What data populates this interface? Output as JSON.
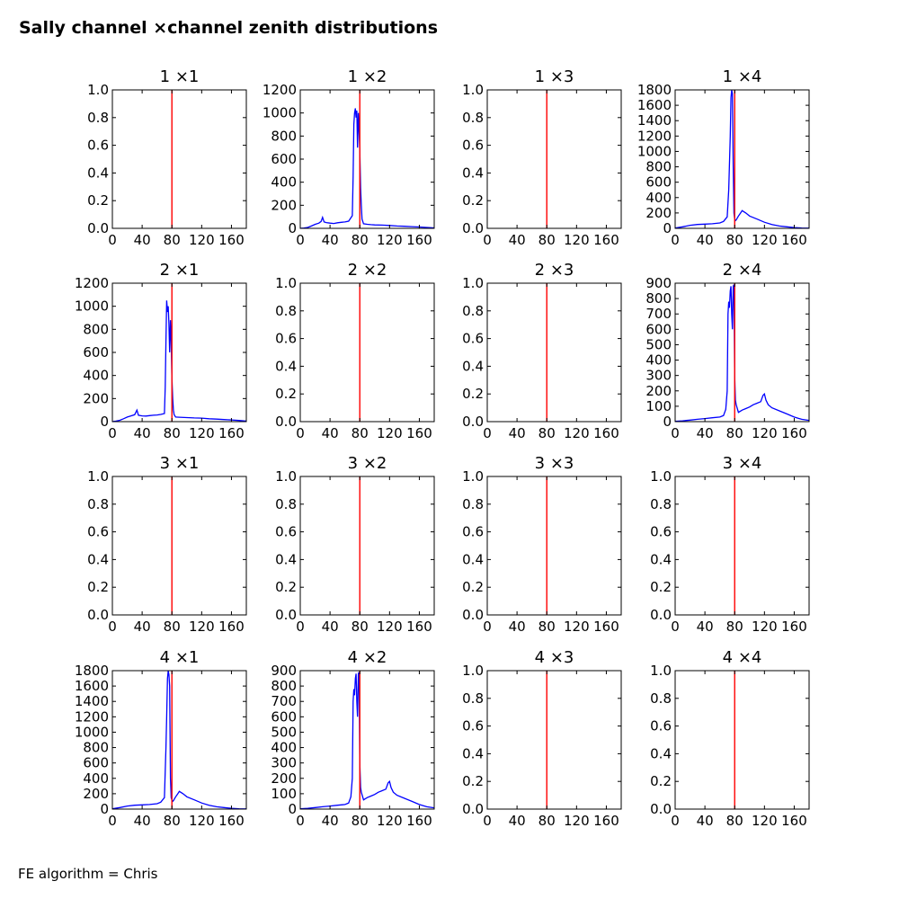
{
  "figure": {
    "title": "Sally channel ×channel zenith distributions",
    "footer": "FE algorithm = Chris",
    "colors": {
      "histogram": "#0000ff",
      "marker": "#ff0000",
      "axes": "#000000"
    }
  },
  "chart_data": [
    {
      "type": "line",
      "title": "1 ×1",
      "xlim": [
        0,
        180
      ],
      "ylim": [
        0,
        1.0
      ],
      "xticks": [
        "0",
        "40",
        "80",
        "120",
        "160"
      ],
      "yticks": [
        "0.0",
        "0.2",
        "0.4",
        "0.6",
        "0.8",
        "1.0"
      ],
      "marker_x": 80,
      "x": [],
      "y": []
    },
    {
      "type": "line",
      "title": "1 ×2",
      "xlim": [
        0,
        180
      ],
      "ylim": [
        0,
        1200
      ],
      "xticks": [
        "0",
        "40",
        "80",
        "120",
        "160"
      ],
      "yticks": [
        "0",
        "200",
        "400",
        "600",
        "800",
        "1000",
        "1200"
      ],
      "marker_x": 80,
      "x": [
        0,
        5,
        10,
        15,
        20,
        25,
        28,
        30,
        32,
        35,
        40,
        45,
        50,
        55,
        60,
        65,
        70,
        71,
        72,
        73,
        74,
        75,
        76,
        77,
        78,
        79,
        80,
        81,
        82,
        83,
        85,
        90,
        95,
        100,
        110,
        120,
        130,
        140,
        150,
        160,
        170,
        180
      ],
      "y": [
        0,
        3,
        8,
        20,
        35,
        45,
        60,
        95,
        55,
        50,
        45,
        42,
        48,
        52,
        55,
        62,
        110,
        450,
        900,
        1000,
        1040,
        960,
        1020,
        700,
        1000,
        850,
        680,
        350,
        200,
        80,
        40,
        35,
        32,
        30,
        28,
        25,
        20,
        18,
        15,
        12,
        8,
        4
      ]
    },
    {
      "type": "line",
      "title": "1 ×3",
      "xlim": [
        0,
        180
      ],
      "ylim": [
        0,
        1.0
      ],
      "xticks": [
        "0",
        "40",
        "80",
        "120",
        "160"
      ],
      "yticks": [
        "0.0",
        "0.2",
        "0.4",
        "0.6",
        "0.8",
        "1.0"
      ],
      "marker_x": 80,
      "x": [],
      "y": []
    },
    {
      "type": "line",
      "title": "1 ×4",
      "xlim": [
        0,
        180
      ],
      "ylim": [
        0,
        1800
      ],
      "xticks": [
        "0",
        "40",
        "80",
        "120",
        "160"
      ],
      "yticks": [
        "0",
        "200",
        "400",
        "600",
        "800",
        "1000",
        "1200",
        "1400",
        "1600",
        "1800"
      ],
      "marker_x": 80,
      "x": [
        0,
        10,
        20,
        30,
        40,
        50,
        60,
        65,
        70,
        72,
        74,
        75,
        76,
        77,
        78,
        79,
        80,
        81,
        82,
        85,
        88,
        90,
        95,
        100,
        110,
        120,
        130,
        140,
        150,
        160,
        170,
        180
      ],
      "y": [
        5,
        20,
        40,
        50,
        55,
        60,
        70,
        90,
        150,
        500,
        1200,
        1700,
        1800,
        1750,
        800,
        200,
        120,
        100,
        110,
        160,
        200,
        230,
        200,
        160,
        120,
        80,
        50,
        30,
        20,
        10,
        5,
        2
      ]
    },
    {
      "type": "line",
      "title": "2 ×1",
      "xlim": [
        0,
        180
      ],
      "ylim": [
        0,
        1200
      ],
      "xticks": [
        "0",
        "40",
        "80",
        "120",
        "160"
      ],
      "yticks": [
        "0",
        "200",
        "400",
        "600",
        "800",
        "1000",
        "1200"
      ],
      "marker_x": 80,
      "x": [
        0,
        5,
        10,
        15,
        20,
        25,
        30,
        33,
        35,
        40,
        45,
        50,
        55,
        60,
        65,
        70,
        71,
        72,
        73,
        74,
        75,
        76,
        77,
        78,
        79,
        80,
        81,
        82,
        83,
        85,
        90,
        100,
        110,
        120,
        130,
        140,
        150,
        160,
        170,
        180
      ],
      "y": [
        0,
        5,
        12,
        25,
        40,
        50,
        60,
        100,
        55,
        50,
        48,
        52,
        55,
        58,
        62,
        70,
        300,
        700,
        1050,
        950,
        1000,
        850,
        600,
        880,
        700,
        380,
        200,
        100,
        60,
        40,
        38,
        35,
        32,
        30,
        25,
        22,
        18,
        15,
        10,
        5
      ]
    },
    {
      "type": "line",
      "title": "2 ×2",
      "xlim": [
        0,
        180
      ],
      "ylim": [
        0,
        1.0
      ],
      "xticks": [
        "0",
        "40",
        "80",
        "120",
        "160"
      ],
      "yticks": [
        "0.0",
        "0.2",
        "0.4",
        "0.6",
        "0.8",
        "1.0"
      ],
      "marker_x": 80,
      "x": [],
      "y": []
    },
    {
      "type": "line",
      "title": "2 ×3",
      "xlim": [
        0,
        180
      ],
      "ylim": [
        0,
        1.0
      ],
      "xticks": [
        "0",
        "40",
        "80",
        "120",
        "160"
      ],
      "yticks": [
        "0.0",
        "0.2",
        "0.4",
        "0.6",
        "0.8",
        "1.0"
      ],
      "marker_x": 80,
      "x": [],
      "y": []
    },
    {
      "type": "line",
      "title": "2 ×4",
      "xlim": [
        0,
        180
      ],
      "ylim": [
        0,
        900
      ],
      "xticks": [
        "0",
        "40",
        "80",
        "120",
        "160"
      ],
      "yticks": [
        "0",
        "100",
        "200",
        "300",
        "400",
        "500",
        "600",
        "700",
        "800",
        "900"
      ],
      "marker_x": 80,
      "x": [
        0,
        10,
        20,
        30,
        40,
        50,
        60,
        65,
        68,
        70,
        71,
        72,
        73,
        74,
        75,
        76,
        77,
        78,
        79,
        80,
        81,
        82,
        85,
        90,
        95,
        100,
        105,
        110,
        115,
        118,
        120,
        122,
        125,
        130,
        140,
        150,
        160,
        170,
        180
      ],
      "y": [
        2,
        5,
        10,
        15,
        20,
        25,
        30,
        40,
        80,
        200,
        700,
        780,
        740,
        850,
        880,
        700,
        600,
        880,
        890,
        300,
        140,
        110,
        60,
        75,
        85,
        95,
        110,
        120,
        130,
        170,
        180,
        140,
        110,
        90,
        70,
        50,
        30,
        15,
        8
      ]
    },
    {
      "type": "line",
      "title": "3 ×1",
      "xlim": [
        0,
        180
      ],
      "ylim": [
        0,
        1.0
      ],
      "xticks": [
        "0",
        "40",
        "80",
        "120",
        "160"
      ],
      "yticks": [
        "0.0",
        "0.2",
        "0.4",
        "0.6",
        "0.8",
        "1.0"
      ],
      "marker_x": 80,
      "x": [],
      "y": []
    },
    {
      "type": "line",
      "title": "3 ×2",
      "xlim": [
        0,
        180
      ],
      "ylim": [
        0,
        1.0
      ],
      "xticks": [
        "0",
        "40",
        "80",
        "120",
        "160"
      ],
      "yticks": [
        "0.0",
        "0.2",
        "0.4",
        "0.6",
        "0.8",
        "1.0"
      ],
      "marker_x": 80,
      "x": [],
      "y": []
    },
    {
      "type": "line",
      "title": "3 ×3",
      "xlim": [
        0,
        180
      ],
      "ylim": [
        0,
        1.0
      ],
      "xticks": [
        "0",
        "40",
        "80",
        "120",
        "160"
      ],
      "yticks": [
        "0.0",
        "0.2",
        "0.4",
        "0.6",
        "0.8",
        "1.0"
      ],
      "marker_x": 80,
      "x": [],
      "y": []
    },
    {
      "type": "line",
      "title": "3 ×4",
      "xlim": [
        0,
        180
      ],
      "ylim": [
        0,
        1.0
      ],
      "xticks": [
        "0",
        "40",
        "80",
        "120",
        "160"
      ],
      "yticks": [
        "0.0",
        "0.2",
        "0.4",
        "0.6",
        "0.8",
        "1.0"
      ],
      "marker_x": 80,
      "x": [],
      "y": []
    },
    {
      "type": "line",
      "title": "4 ×1",
      "xlim": [
        0,
        180
      ],
      "ylim": [
        0,
        1800
      ],
      "xticks": [
        "0",
        "40",
        "80",
        "120",
        "160"
      ],
      "yticks": [
        "0",
        "200",
        "400",
        "600",
        "800",
        "1000",
        "1200",
        "1400",
        "1600",
        "1800"
      ],
      "marker_x": 80,
      "x": [
        0,
        10,
        20,
        30,
        40,
        50,
        60,
        65,
        70,
        72,
        73,
        74,
        75,
        76,
        77,
        78,
        79,
        80,
        81,
        82,
        85,
        88,
        90,
        95,
        100,
        110,
        120,
        130,
        140,
        150,
        160,
        170,
        180
      ],
      "y": [
        5,
        20,
        40,
        50,
        55,
        60,
        70,
        90,
        150,
        800,
        1200,
        1700,
        1800,
        1750,
        1600,
        400,
        150,
        120,
        100,
        110,
        160,
        200,
        230,
        200,
        160,
        120,
        80,
        50,
        30,
        20,
        10,
        5,
        2
      ]
    },
    {
      "type": "line",
      "title": "4 ×2",
      "xlim": [
        0,
        180
      ],
      "ylim": [
        0,
        900
      ],
      "xticks": [
        "0",
        "40",
        "80",
        "120",
        "160"
      ],
      "yticks": [
        "0",
        "100",
        "200",
        "300",
        "400",
        "500",
        "600",
        "700",
        "800",
        "900"
      ],
      "marker_x": 80,
      "x": [
        0,
        10,
        20,
        30,
        40,
        50,
        60,
        65,
        68,
        70,
        71,
        72,
        73,
        74,
        75,
        76,
        77,
        78,
        79,
        80,
        81,
        82,
        85,
        90,
        95,
        100,
        105,
        110,
        115,
        118,
        120,
        122,
        125,
        130,
        140,
        150,
        160,
        170,
        180
      ],
      "y": [
        2,
        5,
        10,
        15,
        20,
        25,
        30,
        40,
        80,
        200,
        700,
        780,
        740,
        850,
        880,
        700,
        600,
        880,
        890,
        300,
        140,
        110,
        60,
        75,
        85,
        95,
        110,
        120,
        130,
        170,
        180,
        140,
        110,
        90,
        70,
        50,
        30,
        15,
        8
      ]
    },
    {
      "type": "line",
      "title": "4 ×3",
      "xlim": [
        0,
        180
      ],
      "ylim": [
        0,
        1.0
      ],
      "xticks": [
        "0",
        "40",
        "80",
        "120",
        "160"
      ],
      "yticks": [
        "0.0",
        "0.2",
        "0.4",
        "0.6",
        "0.8",
        "1.0"
      ],
      "marker_x": 80,
      "x": [],
      "y": []
    },
    {
      "type": "line",
      "title": "4 ×4",
      "xlim": [
        0,
        180
      ],
      "ylim": [
        0,
        1.0
      ],
      "xticks": [
        "0",
        "40",
        "80",
        "120",
        "160"
      ],
      "yticks": [
        "0.0",
        "0.2",
        "0.4",
        "0.6",
        "0.8",
        "1.0"
      ],
      "marker_x": 80,
      "x": [],
      "y": []
    }
  ]
}
